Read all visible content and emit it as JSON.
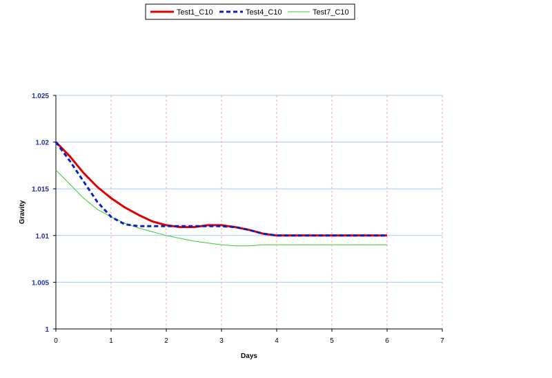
{
  "chart_data": {
    "type": "line",
    "title": "",
    "xlabel": "Days",
    "ylabel": "Gravity",
    "xlim": [
      0,
      7
    ],
    "ylim": [
      1,
      1.025
    ],
    "x_ticks": [
      "0",
      "1",
      "2",
      "3",
      "4",
      "5",
      "6",
      "7"
    ],
    "y_ticks": [
      "1",
      "1.005",
      "1.01",
      "1.015",
      "1.02",
      "1.025"
    ],
    "grid": true,
    "legend_position": "top",
    "series": [
      {
        "name": "Test1_C10",
        "color": "#e00000",
        "style": "solid",
        "points": [
          [
            0,
            1.02
          ],
          [
            0.25,
            1.0185
          ],
          [
            0.5,
            1.0167
          ],
          [
            0.75,
            1.0152
          ],
          [
            1,
            1.014
          ],
          [
            1.25,
            1.013
          ],
          [
            1.5,
            1.0122
          ],
          [
            1.75,
            1.0115
          ],
          [
            2,
            1.0111
          ],
          [
            2.25,
            1.0109
          ],
          [
            2.5,
            1.0109
          ],
          [
            2.75,
            1.0111
          ],
          [
            3,
            1.0111
          ],
          [
            3.25,
            1.0109
          ],
          [
            3.5,
            1.0106
          ],
          [
            3.75,
            1.0102
          ],
          [
            4,
            1.01
          ],
          [
            4.5,
            1.01
          ],
          [
            5,
            1.01
          ],
          [
            5.5,
            1.01
          ],
          [
            6,
            1.01
          ]
        ]
      },
      {
        "name": "Test4_C10",
        "color": "#0a1ec8",
        "style": "dashed",
        "points": [
          [
            0,
            1.02
          ],
          [
            0.25,
            1.018
          ],
          [
            0.5,
            1.0158
          ],
          [
            0.75,
            1.0136
          ],
          [
            1,
            1.012
          ],
          [
            1.25,
            1.0112
          ],
          [
            1.5,
            1.011
          ],
          [
            1.75,
            1.011
          ],
          [
            2,
            1.011
          ],
          [
            2.25,
            1.011
          ],
          [
            2.5,
            1.011
          ],
          [
            2.75,
            1.011
          ],
          [
            3,
            1.011
          ],
          [
            3.25,
            1.0109
          ],
          [
            3.5,
            1.0106
          ],
          [
            3.75,
            1.0102
          ],
          [
            4,
            1.01
          ],
          [
            4.5,
            1.01
          ],
          [
            5,
            1.01
          ],
          [
            5.5,
            1.01
          ],
          [
            6,
            1.01
          ]
        ]
      },
      {
        "name": "Test7_C10",
        "color": "#33cc33",
        "style": "solid-thin",
        "points": [
          [
            0,
            1.017
          ],
          [
            0.25,
            1.0155
          ],
          [
            0.5,
            1.014
          ],
          [
            0.75,
            1.0128
          ],
          [
            1,
            1.012
          ],
          [
            1.25,
            1.0113
          ],
          [
            1.5,
            1.0108
          ],
          [
            1.75,
            1.0104
          ],
          [
            2,
            1.01
          ],
          [
            2.25,
            1.0097
          ],
          [
            2.5,
            1.0094
          ],
          [
            2.75,
            1.0092
          ],
          [
            3,
            1.009
          ],
          [
            3.25,
            1.0089
          ],
          [
            3.5,
            1.0089
          ],
          [
            3.75,
            1.009
          ],
          [
            4,
            1.009
          ],
          [
            4.5,
            1.009
          ],
          [
            5,
            1.009
          ],
          [
            5.5,
            1.009
          ],
          [
            6,
            1.009
          ]
        ]
      }
    ]
  }
}
